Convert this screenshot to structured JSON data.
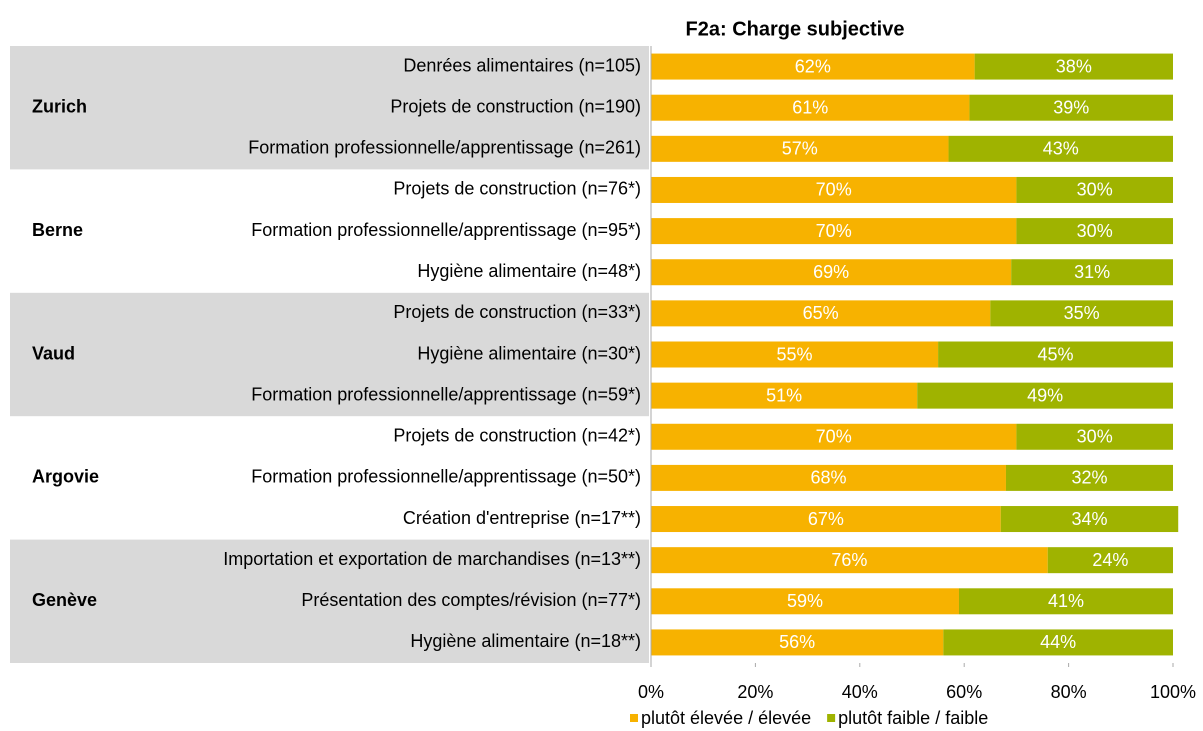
{
  "chart_data": {
    "type": "stacked-bar-horizontal",
    "title": "F2a: Charge subjective",
    "groups": [
      {
        "name": "Zurich",
        "categories": [
          "Denrées alimentaires (n=105)",
          "Projets de construction (n=190)",
          "Formation professionnelle/apprentissage (n=261)"
        ]
      },
      {
        "name": "Berne",
        "categories": [
          "Projets de construction (n=76*)",
          "Formation professionnelle/apprentissage (n=95*)",
          "Hygiène alimentaire (n=48*)"
        ]
      },
      {
        "name": "Vaud",
        "categories": [
          "Projets de construction (n=33*)",
          "Hygiène alimentaire (n=30*)",
          "Formation professionnelle/apprentissage (n=59*)"
        ]
      },
      {
        "name": "Argovie",
        "categories": [
          "Projets de construction (n=42*)",
          "Formation professionnelle/apprentissage (n=50*)",
          "Création d'entreprise (n=17**)"
        ]
      },
      {
        "name": "Genève",
        "categories": [
          "Importation et exportation de marchandises (n=13**)",
          "Présentation des comptes/révision (n=77*)",
          "Hygiène alimentaire (n=18**)"
        ]
      }
    ],
    "series": [
      {
        "name": "plutôt élevée / élevée",
        "color": "#f7b200",
        "values": [
          62,
          61,
          57,
          70,
          70,
          69,
          65,
          55,
          51,
          70,
          68,
          67,
          76,
          59,
          56
        ],
        "value_labels": [
          "62%",
          "61%",
          "57%",
          "70%",
          "70%",
          "69%",
          "65%",
          "55%",
          "51%",
          "70%",
          "68%",
          "67%",
          "76%",
          "59%",
          "56%"
        ]
      },
      {
        "name": "plutôt faible / faible",
        "color": "#9fb300",
        "values": [
          38,
          39,
          43,
          30,
          30,
          31,
          35,
          45,
          49,
          30,
          32,
          34,
          24,
          41,
          44
        ],
        "value_labels": [
          "38%",
          "39%",
          "43%",
          "30%",
          "30%",
          "31%",
          "35%",
          "45%",
          "49%",
          "30%",
          "32%",
          "34%",
          "24%",
          "41%",
          "44%"
        ]
      }
    ],
    "xlim": [
      0,
      100
    ],
    "xticks": [
      {
        "value": 0,
        "label": "0%"
      },
      {
        "value": 20,
        "label": "20%"
      },
      {
        "value": 40,
        "label": "40%"
      },
      {
        "value": 60,
        "label": "60%"
      },
      {
        "value": 80,
        "label": "80%"
      },
      {
        "value": 100,
        "label": "100%"
      }
    ],
    "group_band_color": "#d9d9d9"
  }
}
